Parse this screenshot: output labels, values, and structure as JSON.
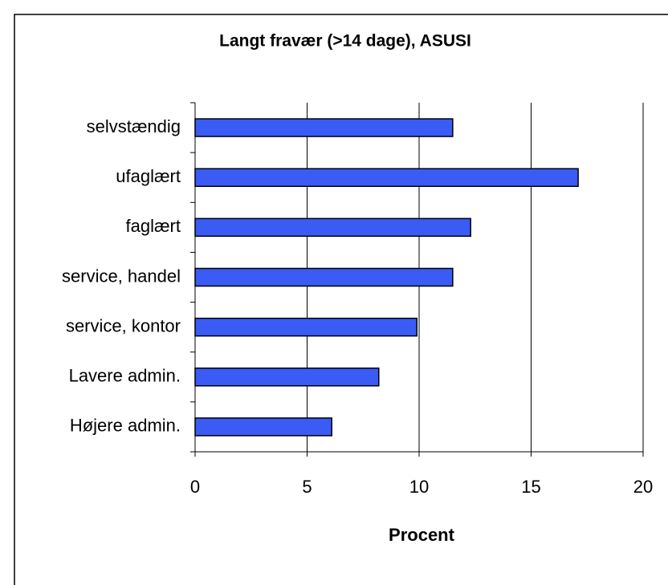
{
  "chart_data": {
    "type": "bar",
    "orientation": "horizontal",
    "title": "Langt fravær (>14 dage), ASUSI",
    "xlabel": "Procent",
    "categories": [
      "selvstændig",
      "ufaglært",
      "faglært",
      "service, handel",
      "service, kontor",
      "Lavere admin.",
      "Højere admin."
    ],
    "values": [
      11.5,
      17.1,
      12.3,
      11.5,
      9.9,
      8.2,
      6.1
    ],
    "color": "#3b5bf5",
    "xlim": [
      0,
      20
    ],
    "xticks": [
      0,
      5,
      10,
      15,
      20
    ],
    "grid": true
  }
}
